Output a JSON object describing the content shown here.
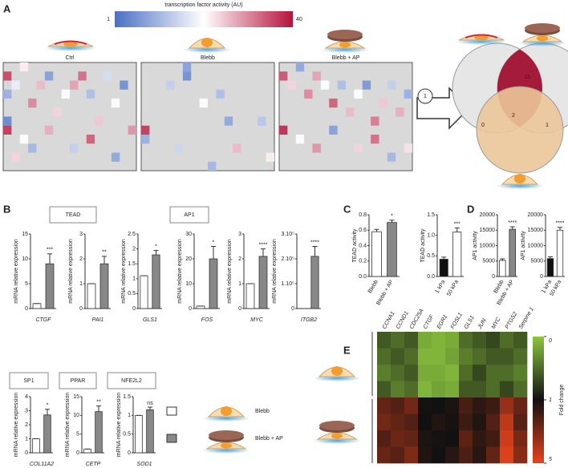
{
  "panel_labels": [
    "A",
    "B",
    "C",
    "D",
    "E"
  ],
  "panel_a": {
    "colorbar": {
      "title": "transcription factor activity (AU)",
      "min": 1,
      "max": 40
    },
    "heatmaps": [
      {
        "title": "Ctrl",
        "cells": [
          {
            "x": 0,
            "y": 1,
            "value": 35
          },
          {
            "x": 0,
            "y": 3,
            "value": 10
          },
          {
            "x": 1,
            "y": 2,
            "value": 18
          },
          {
            "x": 2,
            "y": 0,
            "value": 22
          },
          {
            "x": 3,
            "y": 4,
            "value": 30
          },
          {
            "x": 4,
            "y": 2,
            "value": 26
          },
          {
            "x": 5,
            "y": 1,
            "value": 8
          },
          {
            "x": 6,
            "y": 5,
            "value": 24
          },
          {
            "x": 7,
            "y": 3,
            "value": 20
          },
          {
            "x": 8,
            "y": 2,
            "value": 28
          },
          {
            "x": 9,
            "y": 1,
            "value": 32
          },
          {
            "x": 10,
            "y": 3,
            "value": 12
          },
          {
            "x": 11,
            "y": 6,
            "value": 25
          },
          {
            "x": 12,
            "y": 1,
            "value": 16
          },
          {
            "x": 13,
            "y": 4,
            "value": 21
          },
          {
            "x": 14,
            "y": 2,
            "value": 6
          },
          {
            "x": 15,
            "y": 7,
            "value": 29
          },
          {
            "x": 0,
            "y": 6,
            "value": 5
          },
          {
            "x": 0,
            "y": 7,
            "value": 36
          },
          {
            "x": 2,
            "y": 8,
            "value": 20
          },
          {
            "x": 3,
            "y": 9,
            "value": 11
          },
          {
            "x": 5,
            "y": 7,
            "value": 27
          },
          {
            "x": 8,
            "y": 9,
            "value": 14
          },
          {
            "x": 10,
            "y": 8,
            "value": 33
          },
          {
            "x": 13,
            "y": 10,
            "value": 9
          },
          {
            "x": 1,
            "y": 10,
            "value": 24
          }
        ]
      },
      {
        "title": "Blebb",
        "cells": [
          {
            "x": 5,
            "y": 0,
            "value": 8
          },
          {
            "x": 5,
            "y": 1,
            "value": 6
          },
          {
            "x": 3,
            "y": 2,
            "value": 14
          },
          {
            "x": 9,
            "y": 3,
            "value": 12
          },
          {
            "x": 7,
            "y": 4,
            "value": 20
          },
          {
            "x": 0,
            "y": 7,
            "value": 36
          },
          {
            "x": 0,
            "y": 8,
            "value": 10
          },
          {
            "x": 10,
            "y": 6,
            "value": 9
          },
          {
            "x": 14,
            "y": 6,
            "value": 13
          },
          {
            "x": 11,
            "y": 9,
            "value": 26
          },
          {
            "x": 4,
            "y": 9,
            "value": 15
          },
          {
            "x": 15,
            "y": 10,
            "value": 22
          },
          {
            "x": 8,
            "y": 11,
            "value": 11
          }
        ]
      },
      {
        "title": "Blebb + AP",
        "cells": [
          {
            "x": 0,
            "y": 1,
            "value": 34
          },
          {
            "x": 1,
            "y": 2,
            "value": 24
          },
          {
            "x": 2,
            "y": 0,
            "value": 9
          },
          {
            "x": 3,
            "y": 3,
            "value": 30
          },
          {
            "x": 4,
            "y": 1,
            "value": 28
          },
          {
            "x": 5,
            "y": 2,
            "value": 20
          },
          {
            "x": 6,
            "y": 4,
            "value": 33
          },
          {
            "x": 7,
            "y": 2,
            "value": 12
          },
          {
            "x": 8,
            "y": 5,
            "value": 26
          },
          {
            "x": 9,
            "y": 3,
            "value": 20
          },
          {
            "x": 10,
            "y": 2,
            "value": 7
          },
          {
            "x": 11,
            "y": 6,
            "value": 31
          },
          {
            "x": 12,
            "y": 4,
            "value": 25
          },
          {
            "x": 13,
            "y": 2,
            "value": 14
          },
          {
            "x": 14,
            "y": 5,
            "value": 27
          },
          {
            "x": 15,
            "y": 3,
            "value": 10
          },
          {
            "x": 0,
            "y": 7,
            "value": 37
          },
          {
            "x": 2,
            "y": 8,
            "value": 20
          },
          {
            "x": 4,
            "y": 9,
            "value": 29
          },
          {
            "x": 6,
            "y": 7,
            "value": 8
          },
          {
            "x": 9,
            "y": 9,
            "value": 24
          },
          {
            "x": 11,
            "y": 8,
            "value": 32
          },
          {
            "x": 13,
            "y": 10,
            "value": 11
          },
          {
            "x": 15,
            "y": 9,
            "value": 23
          }
        ]
      }
    ],
    "step": "1",
    "venn": {
      "counts": [
        15,
        2,
        0,
        1
      ]
    }
  },
  "panel_b": {
    "groups": [
      "TEAD",
      "AP1",
      "SP1",
      "PPAR",
      "NFE2L2"
    ],
    "legend": [
      {
        "name": "Blebb",
        "color": "#ffffff"
      },
      {
        "name": "Blebb + AP",
        "color": "#888888"
      }
    ]
  },
  "chart_data": [
    {
      "type": "bar",
      "xlabel": "CTGF",
      "ylabel": "mRNA relative expression",
      "values": [
        1,
        9
      ],
      "errors": [
        0,
        2
      ],
      "colors": [
        "#ffffff",
        "#888888"
      ],
      "significance": "***",
      "ylim": [
        0,
        15
      ],
      "yticks": [
        0,
        5,
        10,
        15
      ]
    },
    {
      "type": "bar",
      "xlabel": "PAI1",
      "ylabel": "mRNA relative expression",
      "values": [
        1,
        1.8
      ],
      "errors": [
        0,
        0.3
      ],
      "colors": [
        "#ffffff",
        "#888888"
      ],
      "significance": "**",
      "ylim": [
        0,
        3
      ],
      "yticks": [
        0,
        1,
        2,
        3
      ]
    },
    {
      "type": "bar",
      "xlabel": "GLS1",
      "ylabel": "mRNA relative expression",
      "values": [
        1.1,
        1.8
      ],
      "errors": [
        0,
        0.15
      ],
      "colors": [
        "#ffffff",
        "#888888"
      ],
      "significance": "*",
      "ylim": [
        0,
        2.5
      ],
      "yticks": [
        0,
        0.5,
        1,
        1.5,
        2,
        2.5
      ]
    },
    {
      "type": "bar",
      "xlabel": "FOS",
      "ylabel": "mRNA relative expression",
      "values": [
        1,
        20
      ],
      "errors": [
        0,
        5
      ],
      "colors": [
        "#ffffff",
        "#888888"
      ],
      "significance": "*",
      "ylim": [
        0,
        30
      ],
      "yticks": [
        0,
        10,
        20,
        30
      ]
    },
    {
      "type": "bar",
      "xlabel": "MYC",
      "ylabel": "mRNA relative expression",
      "values": [
        1,
        2.1
      ],
      "errors": [
        0,
        0.3
      ],
      "colors": [
        "#ffffff",
        "#888888"
      ],
      "significance": "****",
      "ylim": [
        0,
        3
      ],
      "yticks": [
        0,
        1,
        2,
        3
      ]
    },
    {
      "type": "bar",
      "xlabel": "ITGB2",
      "ylabel": "mRNA relative expression",
      "values": [
        1,
        210000
      ],
      "errors": [
        0,
        40000
      ],
      "colors": [
        "#ffffff",
        "#888888"
      ],
      "significance": "****",
      "ylim": [
        0,
        300000
      ],
      "yticks": [
        0,
        {
          "value": 100000,
          "label": "1.10⁵"
        },
        {
          "value": 200000,
          "label": "2.10⁵"
        },
        {
          "value": 300000,
          "label": "3.10⁵"
        }
      ]
    },
    {
      "type": "bar",
      "xlabel": "COL11A2",
      "ylabel": "mRNA relative expression",
      "values": [
        1,
        2.7
      ],
      "errors": [
        0,
        0.4
      ],
      "colors": [
        "#ffffff",
        "#888888"
      ],
      "significance": "*",
      "ylim": [
        0,
        4
      ],
      "yticks": [
        0,
        1,
        2,
        3,
        4
      ]
    },
    {
      "type": "bar",
      "xlabel": "CETP",
      "ylabel": "mRNA relative expression",
      "values": [
        1,
        11
      ],
      "errors": [
        0,
        1.5
      ],
      "colors": [
        "#ffffff",
        "#888888"
      ],
      "significance": "**",
      "ylim": [
        0,
        15
      ],
      "yticks": [
        0,
        5,
        10,
        15
      ]
    },
    {
      "type": "bar",
      "xlabel": "SOD1",
      "ylabel": "mRNA relative expression",
      "values": [
        1,
        1.15
      ],
      "errors": [
        0,
        0.07
      ],
      "colors": [
        "#ffffff",
        "#888888"
      ],
      "significance": "ns",
      "ylim": [
        0,
        1.5
      ],
      "yticks": [
        0,
        0.5,
        1,
        1.5
      ]
    },
    {
      "type": "bar",
      "ylabel": "TEAD activity",
      "categories": [
        "Blebb",
        "Blebb + AP"
      ],
      "values": [
        0.58,
        0.7
      ],
      "errors": [
        0.03,
        0.03
      ],
      "colors": [
        "#ffffff",
        "#888888"
      ],
      "significance": "*",
      "ylim": [
        0,
        0.8
      ],
      "yticks": [
        {
          "value": 0,
          "label": "0.0"
        },
        0.2,
        0.4,
        0.6,
        0.8
      ]
    },
    {
      "type": "bar",
      "ylabel": "TEAD activity",
      "categories": [
        "1 kPa",
        "50 kPa"
      ],
      "values": [
        0.42,
        1.08
      ],
      "errors": [
        0.05,
        0.1
      ],
      "colors": [
        "#111111",
        "#ffffff"
      ],
      "significance": "***",
      "ylim": [
        0,
        1.5
      ],
      "yticks": [
        {
          "value": 0,
          "label": "0.0"
        },
        0.5,
        {
          "value": 1,
          "label": "1.0"
        },
        1.5
      ]
    },
    {
      "type": "bar",
      "ylabel": "AP1 activity",
      "categories": [
        "Blebb",
        "Blebb + AP"
      ],
      "values": [
        5200,
        15300
      ],
      "errors": [
        500,
        800
      ],
      "colors": [
        "#ffffff",
        "#888888"
      ],
      "significance": "****",
      "ylim": [
        0,
        20000
      ],
      "yticks": [
        0,
        5000,
        10000,
        15000,
        20000
      ]
    },
    {
      "type": "bar",
      "ylabel": "AP1 activity",
      "categories": [
        "1 kPa",
        "50 kPa"
      ],
      "values": [
        5800,
        15000
      ],
      "errors": [
        600,
        900
      ],
      "colors": [
        "#111111",
        "#ffffff"
      ],
      "significance": "****",
      "ylim": [
        0,
        20000
      ],
      "yticks": [
        0,
        5000,
        10000,
        15000,
        20000
      ]
    }
  ],
  "panel_e": {
    "genes": [
      "CCNA1",
      "CCND1",
      "CDC25A",
      "CTGF",
      "EGR1",
      "FOSL1",
      "GLS1",
      "JUN",
      "MYC",
      "PTGS2",
      "Serpine 1"
    ],
    "colorbar": {
      "label": "Fold change",
      "ticks": [
        0,
        1,
        5
      ]
    },
    "values": [
      [
        0.6,
        0.5,
        0.6,
        0.15,
        0.1,
        0.15,
        0.5,
        0.6,
        0.7,
        0.5,
        0.6
      ],
      [
        0.5,
        0.6,
        0.5,
        0.1,
        0.1,
        0.2,
        0.4,
        0.5,
        0.6,
        0.6,
        0.5
      ],
      [
        0.4,
        0.5,
        0.6,
        0.15,
        0.15,
        0.1,
        0.5,
        0.7,
        0.5,
        0.5,
        0.4
      ],
      [
        0.6,
        0.4,
        0.5,
        0.1,
        0.2,
        0.15,
        0.6,
        0.6,
        0.5,
        0.7,
        0.5
      ],
      [
        2.5,
        2.2,
        2.8,
        1.1,
        1,
        1.2,
        2,
        1.5,
        1.8,
        3.5,
        2.6
      ],
      [
        2.8,
        2.5,
        2.2,
        1,
        1.3,
        1.1,
        1.8,
        1.3,
        2.2,
        4.2,
        2.3
      ],
      [
        2.2,
        2.7,
        2.5,
        1.2,
        1.1,
        1,
        2.4,
        1.6,
        1.9,
        4.5,
        2.9
      ],
      [
        2.6,
        2.3,
        3,
        1.3,
        1,
        1.4,
        2.1,
        1.4,
        2.5,
        4.8,
        3.2
      ]
    ]
  }
}
